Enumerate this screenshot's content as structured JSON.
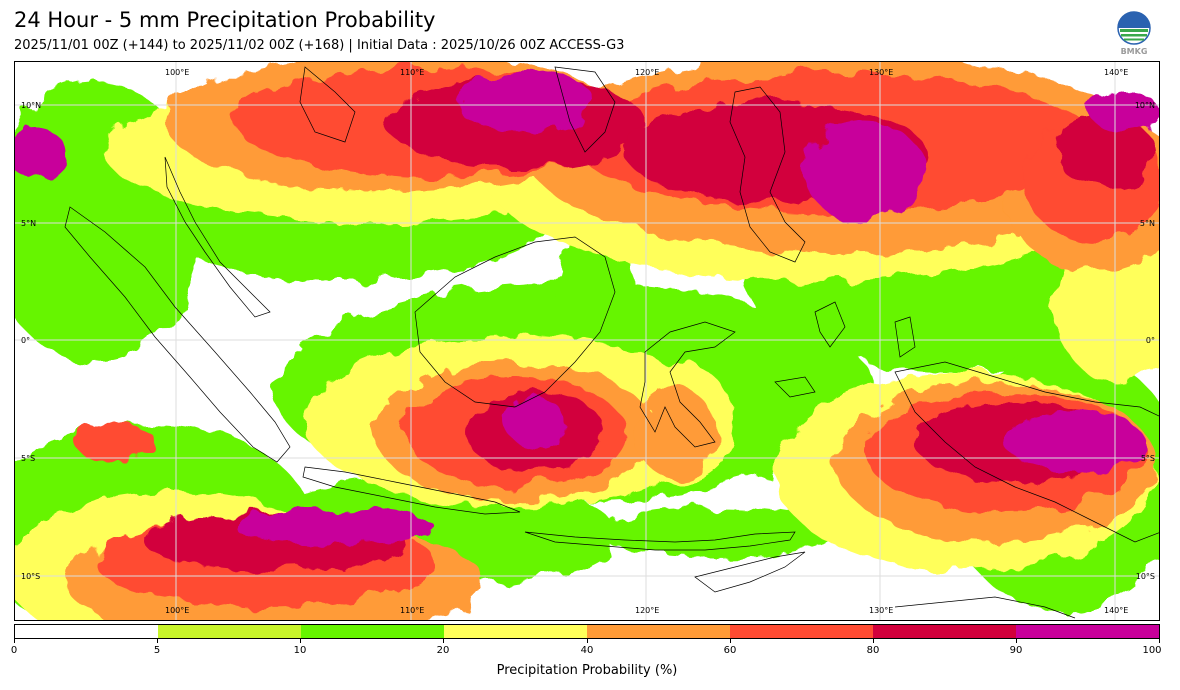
{
  "header": {
    "title": "24 Hour - 5 mm Precipitation Probability",
    "subtitle": "2025/11/01 00Z (+144) to 2025/11/02 00Z (+168) | Initial Data : 2025/10/26 00Z ACCESS-G3"
  },
  "logo": {
    "text": "BMKG"
  },
  "map": {
    "lon_labels_top": [
      "100°E",
      "110°E",
      "120°E",
      "130°E",
      "140°E"
    ],
    "lon_labels_bottom": [
      "100°E",
      "110°E",
      "120°E",
      "130°E",
      "140°E"
    ],
    "lat_labels_left": [
      "10°N",
      "5°N",
      "0°",
      "5°S",
      "10°S"
    ],
    "lat_labels_right": [
      "10°N",
      "5°N",
      "0°",
      "5°S",
      "10°S"
    ]
  },
  "colorbar": {
    "label": "Precipitation Probability (%)",
    "ticks": [
      "0",
      "5",
      "10",
      "20",
      "40",
      "60",
      "80",
      "90",
      "100"
    ],
    "colors": [
      "#ffffff",
      "#c8f52a",
      "#66f500",
      "#ffff5a",
      "#ff9b37",
      "#ff4b32",
      "#d2003c",
      "#c8009b"
    ]
  }
}
